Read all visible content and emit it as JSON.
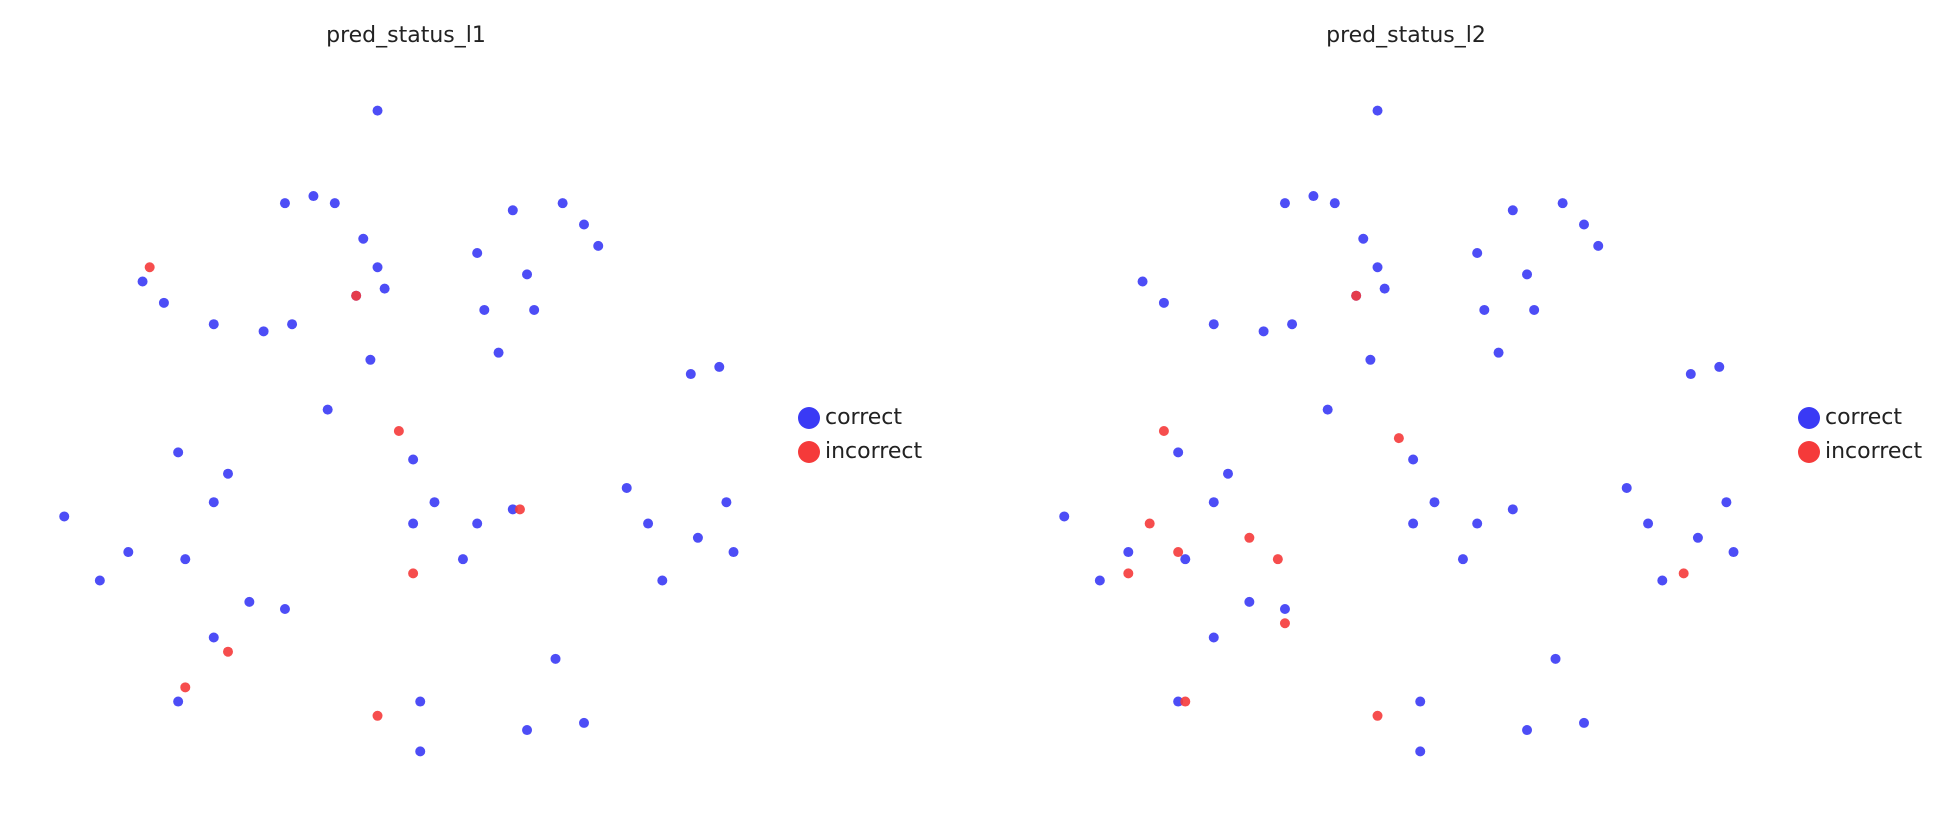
{
  "chart_data": [
    {
      "type": "scatter",
      "title": "pred_status_l1",
      "xlim": [
        0,
        100
      ],
      "ylim": [
        0,
        100
      ],
      "legend": "right",
      "series": [
        {
          "name": "correct",
          "color": "#3a3af5",
          "x": [
            46,
            33,
            37,
            40,
            44,
            46,
            47,
            43,
            60,
            65,
            72,
            75,
            67,
            61,
            68,
            63,
            77,
            13,
            16,
            23,
            30,
            34,
            90,
            94,
            51,
            54,
            60,
            65,
            58,
            51,
            81,
            84,
            95,
            96,
            86,
            91,
            18,
            23,
            11,
            7,
            19,
            28,
            23,
            33,
            25,
            18,
            52,
            52,
            71,
            75,
            67,
            2,
            39,
            45
          ],
          "y": [
            95,
            82,
            83,
            82,
            77,
            73,
            70,
            69,
            75,
            81,
            82,
            79,
            72,
            67,
            67,
            61,
            76,
            71,
            68,
            65,
            64,
            65,
            58,
            59,
            46,
            40,
            37,
            39,
            32,
            37,
            42,
            37,
            40,
            33,
            29,
            35,
            47,
            40,
            33,
            29,
            32,
            26,
            21,
            25,
            44,
            12,
            12,
            5,
            18,
            9,
            8,
            38,
            53,
            60
          ]
        },
        {
          "name": "incorrect",
          "color": "#f53a3a",
          "x": [
            49,
            66,
            51,
            46,
            25,
            19,
            43,
            14
          ],
          "y": [
            50,
            39,
            30,
            10,
            19,
            14,
            69,
            73
          ]
        }
      ]
    },
    {
      "type": "scatter",
      "title": "pred_status_l2",
      "xlim": [
        0,
        100
      ],
      "ylim": [
        0,
        100
      ],
      "legend": "right",
      "series": [
        {
          "name": "correct",
          "color": "#3a3af5",
          "x": [
            46,
            33,
            37,
            40,
            44,
            46,
            47,
            43,
            60,
            65,
            72,
            75,
            67,
            61,
            68,
            63,
            77,
            13,
            16,
            23,
            30,
            34,
            90,
            94,
            51,
            54,
            60,
            65,
            58,
            51,
            81,
            84,
            95,
            96,
            86,
            91,
            18,
            23,
            11,
            7,
            19,
            28,
            23,
            33,
            25,
            18,
            52,
            52,
            71,
            75,
            67,
            2,
            39,
            45
          ],
          "y": [
            95,
            82,
            83,
            82,
            77,
            73,
            70,
            69,
            75,
            81,
            82,
            79,
            72,
            67,
            67,
            61,
            76,
            71,
            68,
            65,
            64,
            65,
            58,
            59,
            46,
            40,
            37,
            39,
            32,
            37,
            42,
            37,
            40,
            33,
            29,
            35,
            47,
            40,
            33,
            29,
            32,
            26,
            21,
            25,
            44,
            12,
            12,
            5,
            18,
            9,
            8,
            38,
            53,
            60
          ]
        },
        {
          "name": "incorrect",
          "color": "#f53a3a",
          "x": [
            16,
            14,
            18,
            28,
            11,
            32,
            33,
            49,
            46,
            19,
            89,
            43
          ],
          "y": [
            50,
            37,
            33,
            35,
            30,
            32,
            23,
            49,
            10,
            12,
            30,
            69
          ]
        }
      ]
    }
  ]
}
